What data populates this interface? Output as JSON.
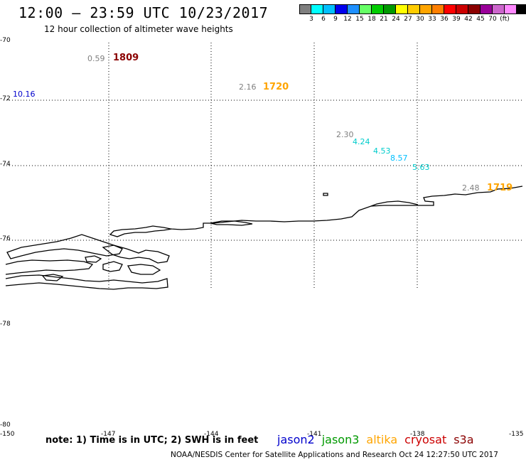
{
  "header": {
    "title": "12:00 — 23:59 UTC 10/23/2017",
    "subtitle": "12 hour collection of altimeter wave heights"
  },
  "legend": {
    "colors": [
      "#7f7f7f",
      "#00ffff",
      "#00bfff",
      "#0000ee",
      "#1e90ff",
      "#66ff66",
      "#00cc00",
      "#009900",
      "#ffff00",
      "#ffcc00",
      "#ffa500",
      "#ff7f00",
      "#ff0000",
      "#cc0000",
      "#8b0000",
      "#990099",
      "#cc66cc",
      "#ff88ff",
      "#000000"
    ],
    "labels": [
      "3",
      "6",
      "9",
      "12",
      "15",
      "18",
      "21",
      "24",
      "27",
      "30",
      "33",
      "36",
      "39",
      "42",
      "45",
      "70",
      "(ft)"
    ]
  },
  "map": {
    "lat_labels": [
      "-70",
      "-72",
      "-74",
      "-76",
      "-78",
      "-80"
    ],
    "lon_labels": [
      "-150",
      "-147",
      "-144",
      "-141",
      "-138",
      "-135"
    ],
    "observations": [
      {
        "value": "0.59",
        "color": "#7f7f7f"
      },
      {
        "value": "10.16",
        "color": "#0000cc"
      },
      {
        "value": "2.16",
        "color": "#7f7f7f"
      },
      {
        "value": "2.30",
        "color": "#7f7f7f"
      },
      {
        "value": "4.24",
        "color": "#00cccc"
      },
      {
        "value": "4.53",
        "color": "#00cccc"
      },
      {
        "value": "8.57",
        "color": "#00bfff"
      },
      {
        "value": "5.63",
        "color": "#00cccc"
      },
      {
        "value": "2.48",
        "color": "#7f7f7f"
      }
    ],
    "pass_times": [
      {
        "value": "1809",
        "color": "#8b0000"
      },
      {
        "value": "1720",
        "color": "#ffa500"
      },
      {
        "value": "1719",
        "color": "#ffa500"
      }
    ]
  },
  "footer": {
    "note": "note: 1) Time is in UTC; 2) SWH is in feet",
    "satellites": [
      {
        "name": "jason2",
        "color": "#0000cc"
      },
      {
        "name": "jason3",
        "color": "#009900"
      },
      {
        "name": "altika",
        "color": "#ffa500"
      },
      {
        "name": "cryosat",
        "color": "#cc0000"
      },
      {
        "name": "s3a",
        "color": "#8b0000"
      }
    ],
    "credit": "NOAA/NESDIS Center for Satellite Applications and Research    Oct 24 12:27:50 UTC 2017"
  }
}
